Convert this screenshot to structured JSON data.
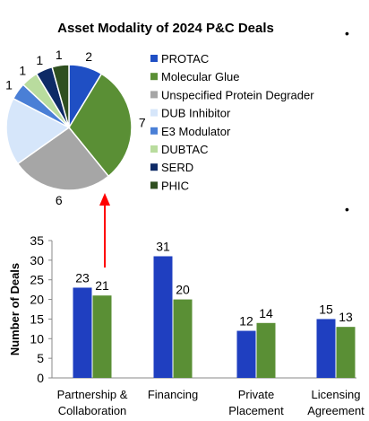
{
  "chart_data": [
    {
      "type": "pie",
      "title": "Asset Modality of 2024 P&C Deals",
      "slices": [
        {
          "label": "PROTAC",
          "value": 2,
          "color": "#1f4fc4"
        },
        {
          "label": "Molecular Glue",
          "value": 7,
          "color": "#5a8f35"
        },
        {
          "label": "Unspecified Protein Degrader",
          "value": 6,
          "color": "#a6a6a6"
        },
        {
          "label": "DUB Inhibitor",
          "value": 4,
          "color": "#d6e6fa"
        },
        {
          "label": "E3 Modulator",
          "value": 1,
          "color": "#4a7fd6"
        },
        {
          "label": "DUBTAC",
          "value": 1,
          "color": "#b9dc9e"
        },
        {
          "label": "SERD",
          "value": 1,
          "color": "#0e2a66"
        },
        {
          "label": "PHIC",
          "value": 1,
          "color": "#2f4f20"
        }
      ],
      "legend_position": "right"
    },
    {
      "type": "bar",
      "title": "",
      "ylabel": "Number of Deals",
      "ylim": [
        0,
        35
      ],
      "yticks": [
        0,
        5,
        10,
        15,
        20,
        25,
        30,
        35
      ],
      "categories": [
        [
          "Partnership &",
          "Collaboration"
        ],
        [
          "Financing"
        ],
        [
          "Private",
          "Placement"
        ],
        [
          "Licensing",
          "Agreement"
        ]
      ],
      "series": [
        {
          "values": [
            23,
            31,
            12,
            15
          ],
          "color": "#1f3fc0"
        },
        {
          "values": [
            21,
            20,
            14,
            13
          ],
          "color": "#5a8f35"
        }
      ],
      "grid": false
    }
  ],
  "annotations": {
    "arrow_color": "#ff0000",
    "bullets": [
      "•",
      "•"
    ]
  }
}
